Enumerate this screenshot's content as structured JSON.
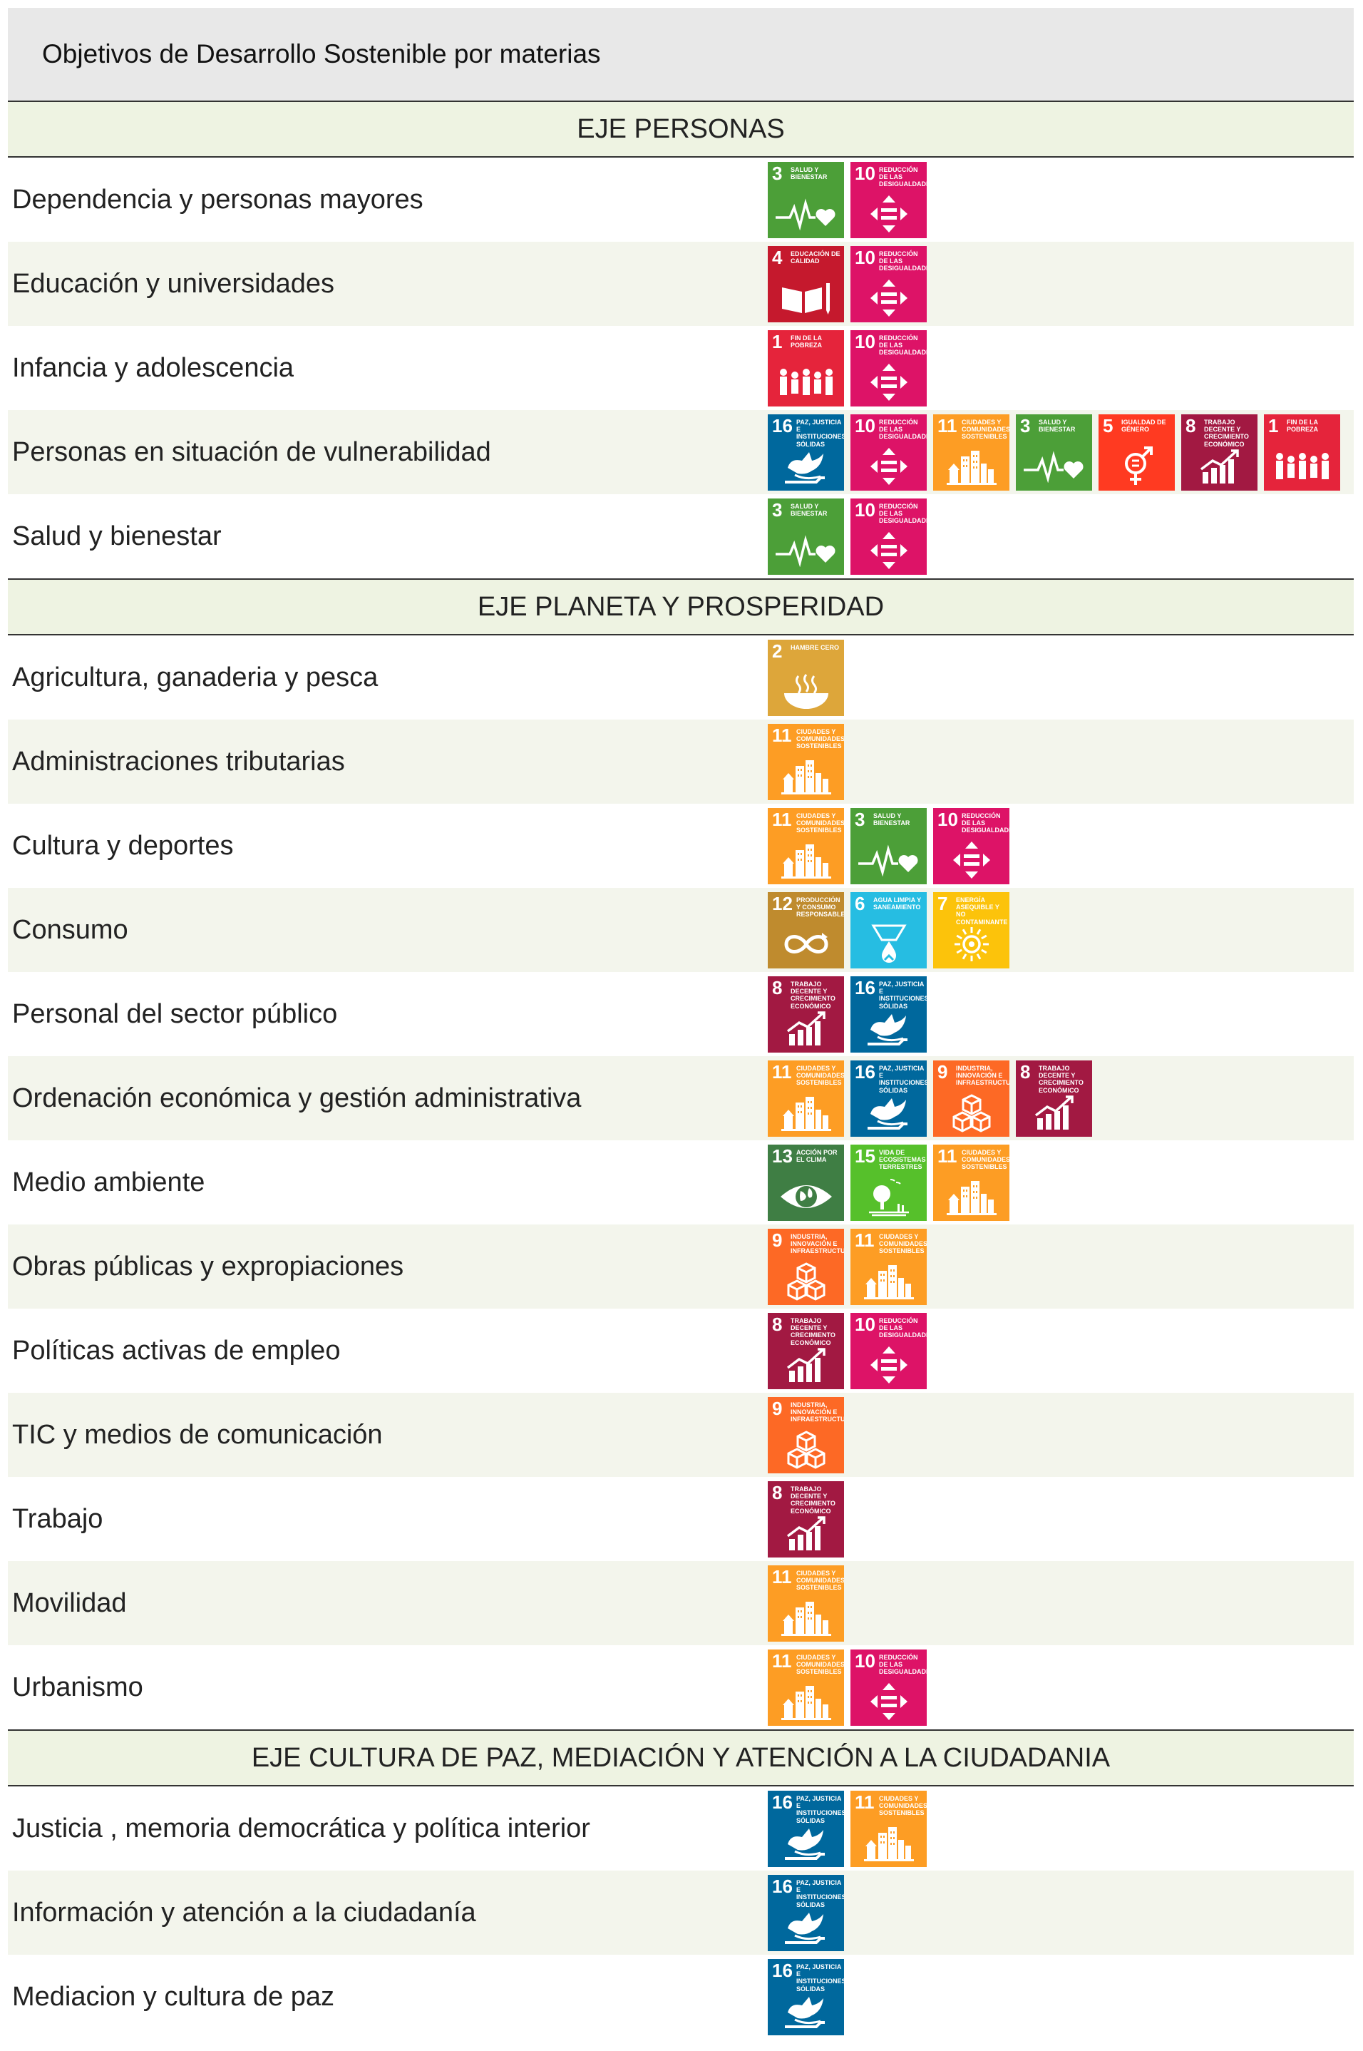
{
  "title": "Objetivos de Desarrollo Sostenible por materias",
  "sdg_catalog": {
    "1": {
      "number": "1",
      "label": "FIN DE LA POBREZA",
      "color": "#e5243b",
      "icon": "family-icon"
    },
    "2": {
      "number": "2",
      "label": "HAMBRE CERO",
      "color": "#dda63a",
      "icon": "bowl-icon"
    },
    "3": {
      "number": "3",
      "label": "SALUD Y BIENESTAR",
      "color": "#4c9f38",
      "icon": "heartbeat-icon"
    },
    "4": {
      "number": "4",
      "label": "EDUCACIÓN DE CALIDAD",
      "color": "#c5192d",
      "icon": "book-icon"
    },
    "5": {
      "number": "5",
      "label": "IGUALDAD DE GÉNERO",
      "color": "#ff3a21",
      "icon": "gender-icon"
    },
    "6": {
      "number": "6",
      "label": "AGUA LIMPIA Y SANEAMIENTO",
      "color": "#26bde2",
      "icon": "water-icon"
    },
    "7": {
      "number": "7",
      "label": "ENERGÍA ASEQUIBLE Y NO CONTAMINANTE",
      "color": "#fcc30b",
      "icon": "sun-icon"
    },
    "8": {
      "number": "8",
      "label": "TRABAJO DECENTE Y CRECIMIENTO ECONÓMICO",
      "color": "#a21942",
      "icon": "growth-icon"
    },
    "9": {
      "number": "9",
      "label": "INDUSTRIA, INNOVACIÓN E INFRAESTRUCTURA",
      "color": "#fd6925",
      "icon": "cubes-icon"
    },
    "10": {
      "number": "10",
      "label": "REDUCCIÓN DE LAS DESIGUALDADES",
      "color": "#dd1367",
      "icon": "equality-icon"
    },
    "11": {
      "number": "11",
      "label": "CIUDADES Y COMUNIDADES SOSTENIBLES",
      "color": "#fd9d24",
      "icon": "city-icon"
    },
    "12": {
      "number": "12",
      "label": "PRODUCCIÓN Y CONSUMO RESPONSABLES",
      "color": "#bf8b2e",
      "icon": "infinity-icon"
    },
    "13": {
      "number": "13",
      "label": "ACCIÓN POR EL CLIMA",
      "color": "#3f7e44",
      "icon": "eye-globe-icon"
    },
    "15": {
      "number": "15",
      "label": "VIDA DE ECOSISTEMAS TERRESTRES",
      "color": "#56c02b",
      "icon": "tree-icon"
    },
    "16": {
      "number": "16",
      "label": "PAZ, JUSTICIA E INSTITUCIONES SÓLIDAS",
      "color": "#00689d",
      "icon": "dove-icon"
    }
  },
  "sections": [
    {
      "heading": "EJE PERSONAS",
      "rows": [
        {
          "label": "Dependencia y personas mayores",
          "sdgs": [
            "3",
            "10"
          ]
        },
        {
          "label": "Educación y universidades",
          "sdgs": [
            "4",
            "10"
          ]
        },
        {
          "label": "Infancia y adolescencia",
          "sdgs": [
            "1",
            "10"
          ]
        },
        {
          "label": "Personas en situación de vulnerabilidad",
          "sdgs": [
            "16",
            "10",
            "11",
            "3",
            "5",
            "8",
            "1"
          ]
        },
        {
          "label": "Salud y bienestar",
          "sdgs": [
            "3",
            "10"
          ]
        }
      ]
    },
    {
      "heading": "EJE PLANETA Y PROSPERIDAD",
      "rows": [
        {
          "label": "Agricultura, ganaderia y pesca",
          "sdgs": [
            "2"
          ]
        },
        {
          "label": "Administraciones tributarias",
          "sdgs": [
            "11"
          ]
        },
        {
          "label": "Cultura y deportes",
          "sdgs": [
            "11",
            "3",
            "10"
          ]
        },
        {
          "label": "Consumo",
          "sdgs": [
            "12",
            "6",
            "7"
          ]
        },
        {
          "label": "Personal del sector público",
          "sdgs": [
            "8",
            "16"
          ]
        },
        {
          "label": "Ordenación económica y gestión administrativa",
          "sdgs": [
            "11",
            "16",
            "9",
            "8"
          ]
        },
        {
          "label": "Medio ambiente",
          "sdgs": [
            "13",
            "15",
            "11"
          ]
        },
        {
          "label": "Obras públicas y expropiaciones",
          "sdgs": [
            "9",
            "11"
          ]
        },
        {
          "label": "Políticas activas de empleo",
          "sdgs": [
            "8",
            "10"
          ]
        },
        {
          "label": "TIC y medios de comunicación",
          "sdgs": [
            "9"
          ]
        },
        {
          "label": "Trabajo",
          "sdgs": [
            "8"
          ]
        },
        {
          "label": "Movilidad",
          "sdgs": [
            "11"
          ]
        },
        {
          "label": "Urbanismo",
          "sdgs": [
            "11",
            "10"
          ]
        }
      ]
    },
    {
      "heading": "EJE CULTURA DE PAZ, MEDIACIÓN Y ATENCIÓN A LA CIUDADANIA",
      "rows": [
        {
          "label": "Justicia , memoria democrática y política interior",
          "sdgs": [
            "16",
            "11"
          ]
        },
        {
          "label": "Información y atención a la ciudadanía",
          "sdgs": [
            "16"
          ]
        },
        {
          "label": "Mediacion y cultura de paz",
          "sdgs": [
            "16"
          ]
        }
      ]
    }
  ]
}
